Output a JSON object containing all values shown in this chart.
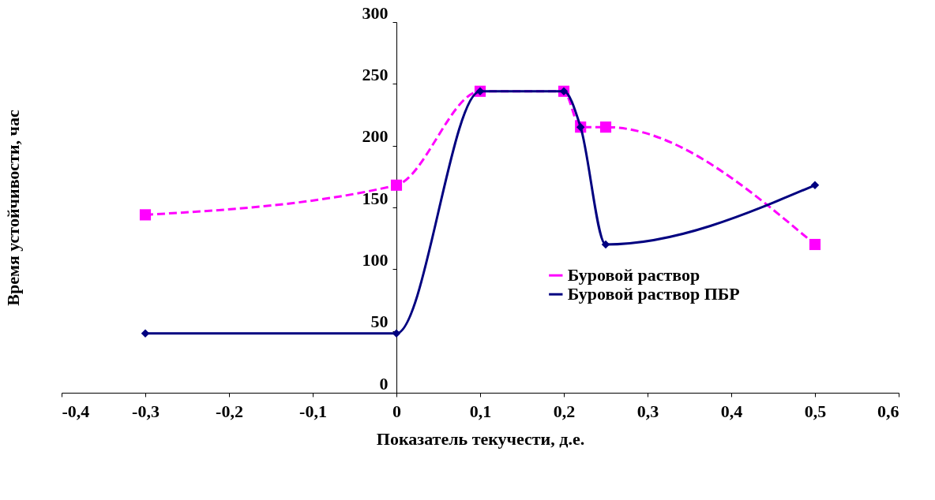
{
  "chart_data": {
    "type": "line",
    "xlabel": "Показатель текучести, д.е.",
    "ylabel": "Время устойчивости, час",
    "xlim": [
      -0.4,
      0.6
    ],
    "xticks": [
      {
        "value": -0.4,
        "label": "-0,4"
      },
      {
        "value": -0.3,
        "label": "-0,3"
      },
      {
        "value": -0.2,
        "label": "-0,2"
      },
      {
        "value": -0.1,
        "label": "-0,1"
      },
      {
        "value": 0,
        "label": "0"
      },
      {
        "value": 0.1,
        "label": "0,1"
      },
      {
        "value": 0.2,
        "label": "0,2"
      },
      {
        "value": 0.3,
        "label": "0,3"
      },
      {
        "value": 0.4,
        "label": "0,4"
      },
      {
        "value": 0.5,
        "label": "0,5"
      },
      {
        "value": 0.6,
        "label": "0,6"
      }
    ],
    "ylim": [
      0,
      300
    ],
    "yticks": [
      0,
      50,
      100,
      150,
      200,
      250,
      300
    ],
    "grid": false,
    "legend": "bottom right",
    "x": [
      -0.3,
      0,
      0.1,
      0.2,
      0.22,
      0.25,
      0.5
    ],
    "series": [
      {
        "name": "Буровой раствор",
        "color": "#ff00ff",
        "marker": "square",
        "line_style": "dashed",
        "values": [
          144,
          168,
          244,
          244,
          215,
          215,
          120
        ]
      },
      {
        "name": "Буровой раствор ПБР",
        "color": "#000080",
        "marker": "diamond",
        "line_style": "solid",
        "values": [
          48,
          48,
          244,
          244,
          215,
          120,
          168
        ]
      }
    ]
  }
}
